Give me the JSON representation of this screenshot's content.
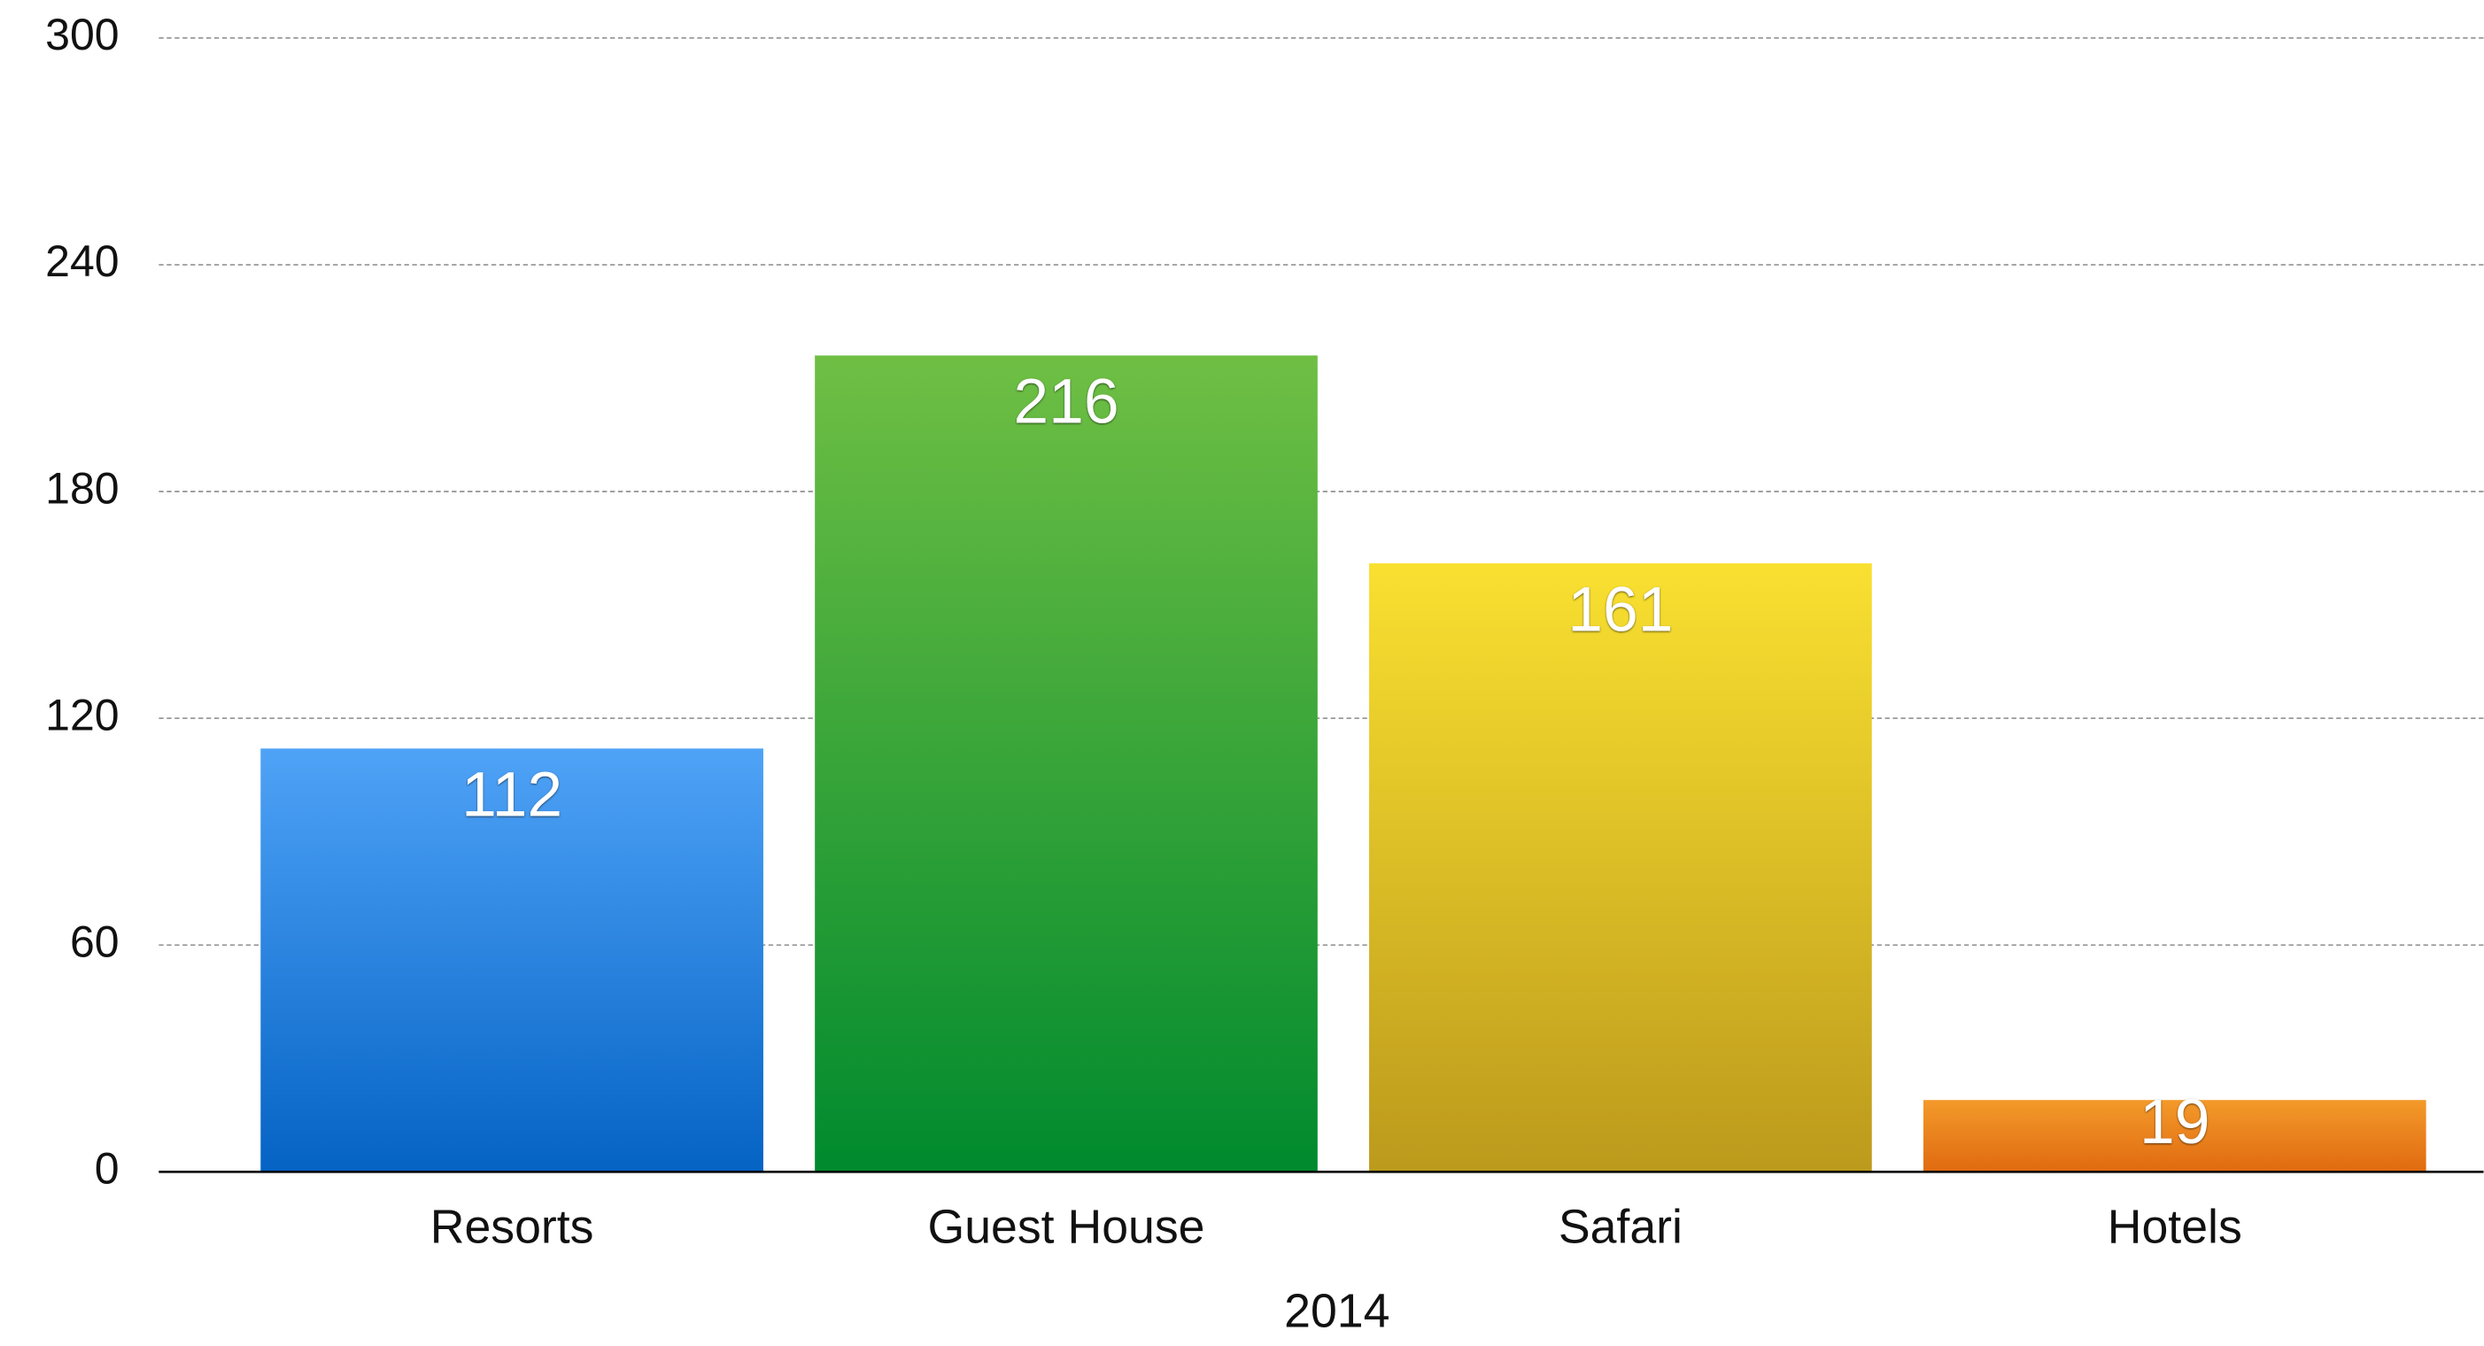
{
  "chart_data": {
    "type": "bar",
    "categories": [
      "Resorts",
      "Guest House",
      "Safari",
      "Hotels"
    ],
    "values": [
      112,
      216,
      161,
      19
    ],
    "colors": [
      [
        "#4fa3f7",
        "#0563c4"
      ],
      [
        "#6fbf44",
        "#008a2e"
      ],
      [
        "#f9e030",
        "#bc9a1c"
      ],
      [
        "#f39a2a",
        "#e06a10"
      ]
    ],
    "xlabel": "2014",
    "ylim": [
      0,
      300
    ],
    "yticks": [
      0,
      60,
      120,
      180,
      240,
      300
    ],
    "grid": true
  }
}
